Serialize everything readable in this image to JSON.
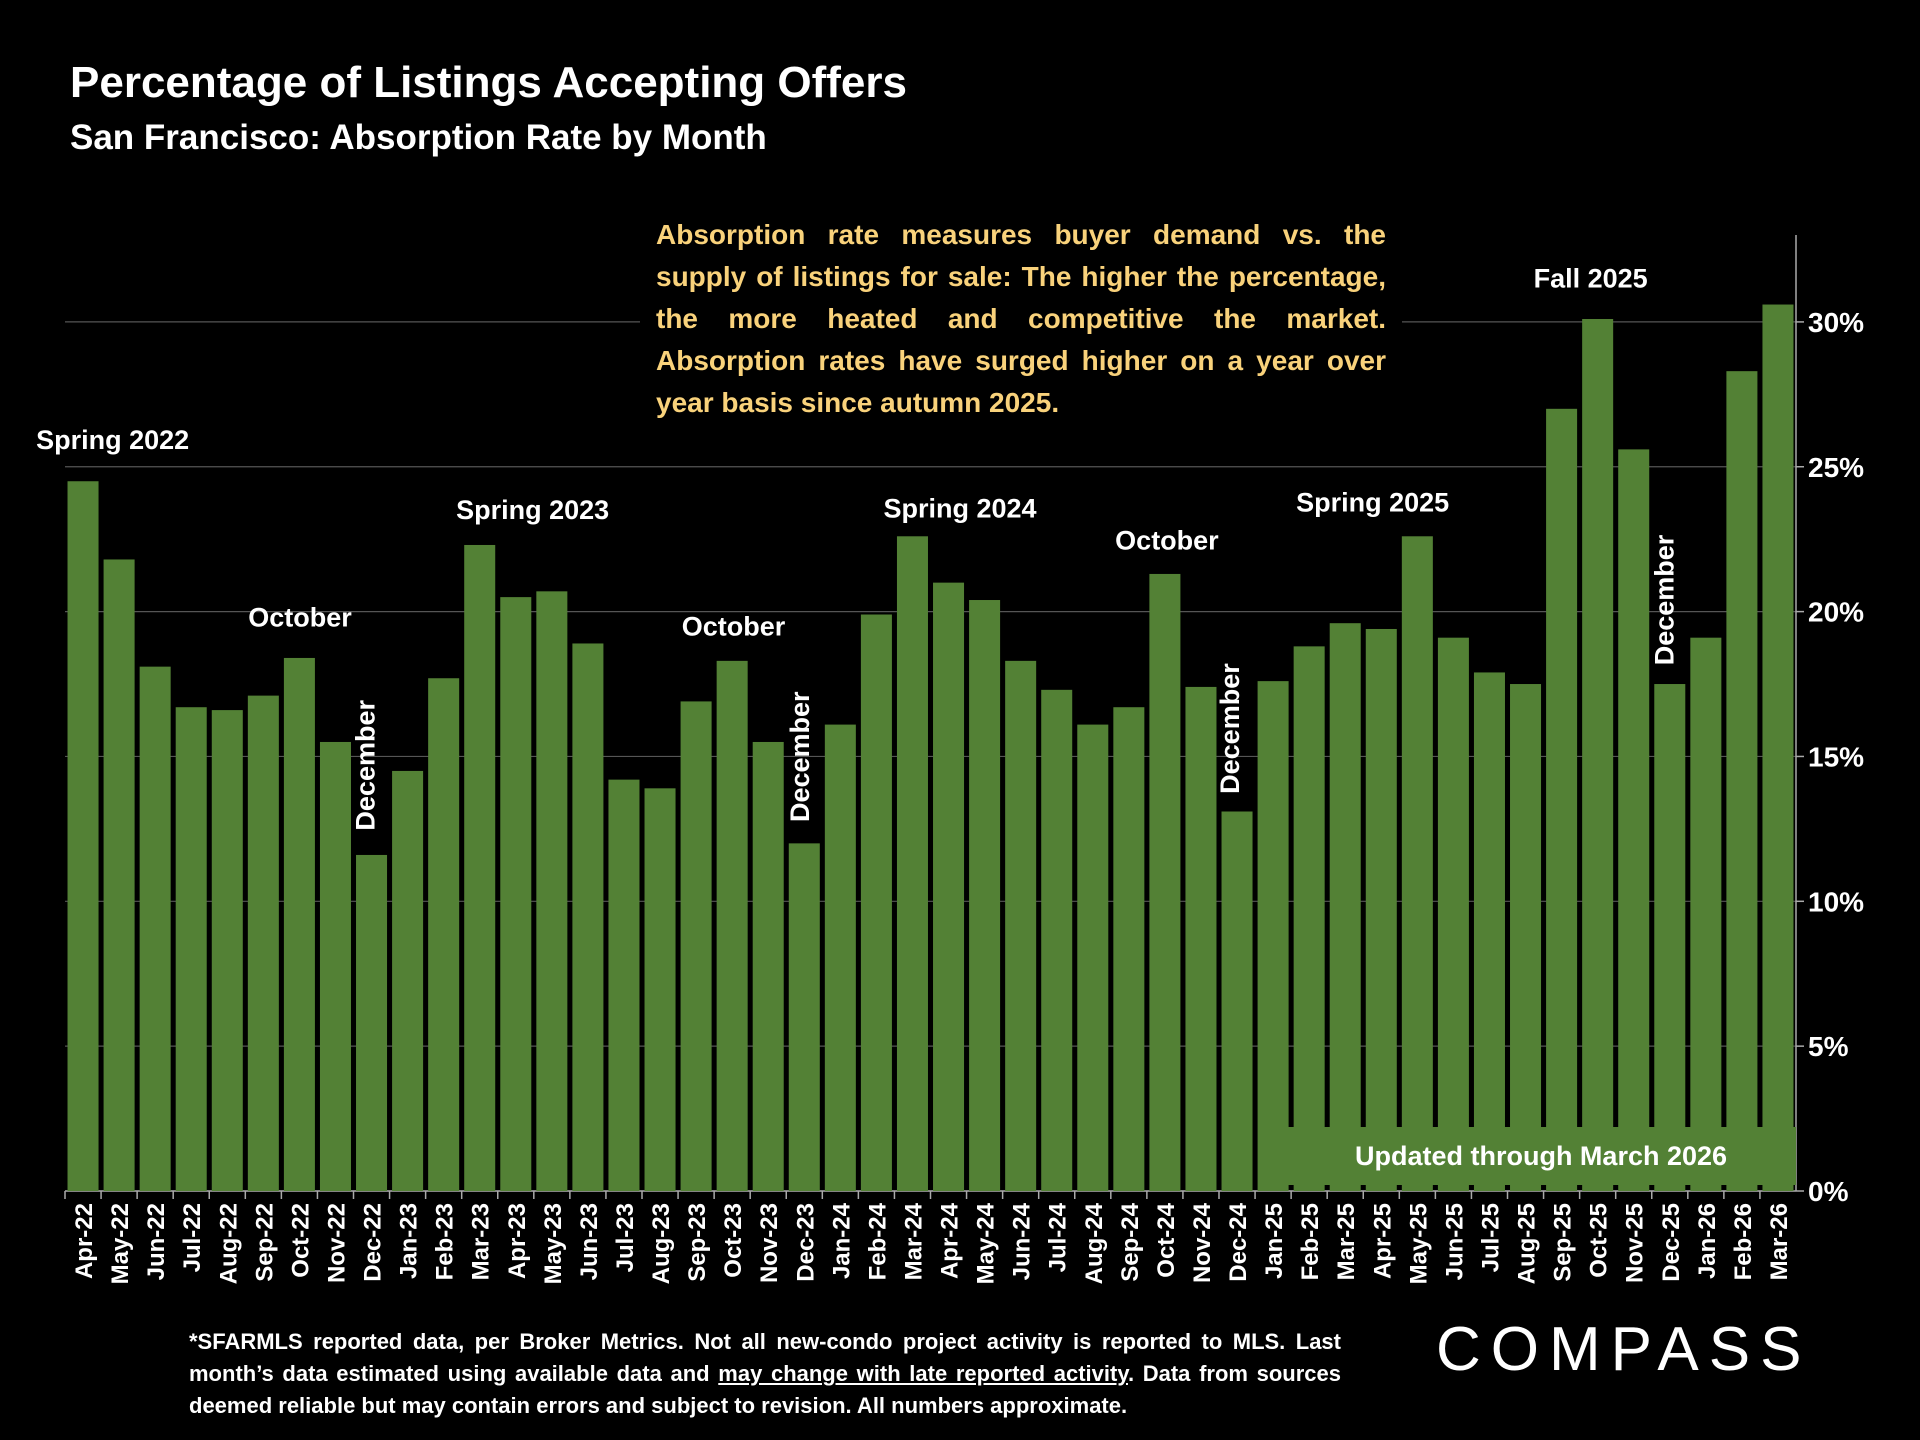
{
  "chart_data": {
    "type": "bar",
    "title": "Percentage of Listings Accepting Offers",
    "subtitle": "San Francisco:  Absorption Rate by Month",
    "categories": [
      "Apr-22",
      "May-22",
      "Jun-22",
      "Jul-22",
      "Aug-22",
      "Sep-22",
      "Oct-22",
      "Nov-22",
      "Dec-22",
      "Jan-23",
      "Feb-23",
      "Mar-23",
      "Apr-23",
      "May-23",
      "Jun-23",
      "Jul-23",
      "Aug-23",
      "Sep-23",
      "Oct-23",
      "Nov-23",
      "Dec-23",
      "Jan-24",
      "Feb-24",
      "Mar-24",
      "Apr-24",
      "May-24",
      "Jun-24",
      "Jul-24",
      "Aug-24",
      "Sep-24",
      "Oct-24",
      "Nov-24",
      "Dec-24",
      "Jan-25",
      "Feb-25",
      "Mar-25",
      "Apr-25",
      "May-25",
      "Jun-25",
      "Jul-25",
      "Aug-25",
      "Sep-25",
      "Oct-25",
      "Nov-25",
      "Dec-25",
      "Jan-26",
      "Feb-26",
      "Mar-26"
    ],
    "values": [
      24.5,
      21.8,
      18.1,
      16.7,
      16.6,
      17.1,
      18.4,
      15.5,
      11.6,
      14.5,
      17.7,
      22.3,
      20.5,
      20.7,
      18.9,
      14.2,
      13.9,
      16.9,
      18.3,
      15.5,
      12.0,
      16.1,
      19.9,
      22.6,
      21.0,
      20.4,
      18.3,
      17.3,
      16.1,
      16.7,
      21.3,
      17.4,
      13.1,
      17.6,
      18.8,
      19.6,
      19.4,
      22.6,
      19.1,
      17.9,
      17.5,
      27.0,
      30.1,
      25.6,
      17.5,
      19.1,
      28.3,
      30.6
    ],
    "color": "#538135",
    "ylim": [
      0,
      33
    ],
    "yticks": [
      {
        "value": 0,
        "label": "0%"
      },
      {
        "value": 5,
        "label": "5%"
      },
      {
        "value": 10,
        "label": "10%"
      },
      {
        "value": 15,
        "label": "15%"
      },
      {
        "value": 20,
        "label": "20%"
      },
      {
        "value": 25,
        "label": "25%"
      },
      {
        "value": 30,
        "label": "30%"
      }
    ],
    "grid": true,
    "annotations": [
      "Spring 2022",
      "October",
      "December",
      "Spring 2023",
      "October",
      "December",
      "Spring 2024",
      "October",
      "December",
      "Spring 2025",
      "Fall 2025",
      "December"
    ],
    "callout": "Absorption rate measures buyer demand vs. the supply of listings for sale: The higher the percentage, the more heated and competitive the market.  Absorption rates have surged higher on a year over year basis since autumn 2025.",
    "update_note": "Updated through March 2026",
    "footnote": [
      "*SFARMLS reported data, per Broker Metrics. Not all new-condo project activity is reported to MLS. Last month’s data estimated using available data and ",
      "may change with late reported activity",
      ". Data from sources deemed reliable but may contain errors and subject to revision. All numbers approximate."
    ],
    "logo": "COMPASS"
  }
}
